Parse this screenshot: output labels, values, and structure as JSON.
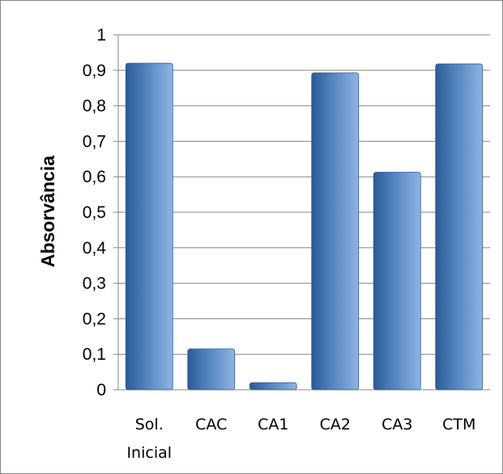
{
  "chart_data": {
    "type": "bar",
    "title": "",
    "xlabel": "",
    "ylabel": "Absorvância",
    "categories": [
      [
        "Sol.",
        "Inicial"
      ],
      [
        "CAC"
      ],
      [
        "CA1"
      ],
      [
        "CA2"
      ],
      [
        "CA3"
      ],
      [
        "CTM"
      ]
    ],
    "values": [
      0.92,
      0.115,
      0.02,
      0.893,
      0.613,
      0.918
    ],
    "ylim": [
      0,
      1
    ],
    "yticks": [
      "0",
      "0,1",
      "0,2",
      "0,3",
      "0,4",
      "0,5",
      "0,6",
      "0,7",
      "0,8",
      "0,9",
      "1"
    ],
    "grid": true,
    "legend": "none",
    "colors": {
      "bar_light": "#8fb4e3",
      "bar_mid": "#4f81bd",
      "bar_dark": "#2c5a94",
      "gridline": "#868686"
    }
  }
}
